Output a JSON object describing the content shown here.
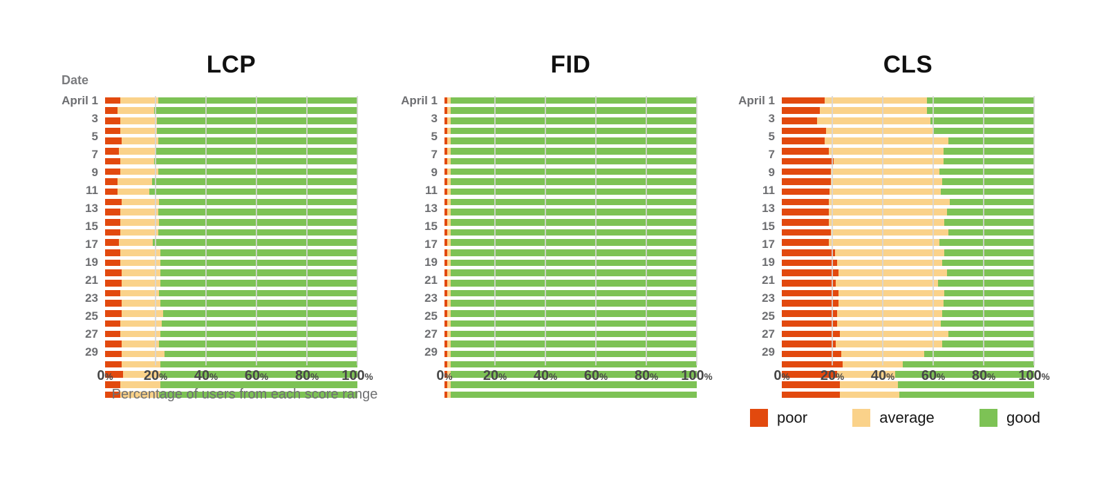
{
  "axis": {
    "y_header": "Date",
    "x_axis_title": "Percentage of users from each score range",
    "pct_suffix": "%"
  },
  "legend": {
    "items": [
      {
        "label": "poor",
        "color": "#e2490e"
      },
      {
        "label": "average",
        "color": "#fad28a"
      },
      {
        "label": "good",
        "color": "#7dc255"
      }
    ]
  },
  "colors": {
    "poor": "#e2490e",
    "average": "#fad28a",
    "good": "#7dc255",
    "gridline": "#d6d6d6",
    "title_text": "#111111",
    "date_label_text": "#6d6e71",
    "tick_text": "#474747",
    "subtitle_text": "#6f7072"
  },
  "chart_data": [
    {
      "type": "bar",
      "orientation": "horizontal",
      "stacked": true,
      "title": "LCP",
      "ylabel": "Date",
      "xlabel": "Percentage of users from each score range",
      "xlim": [
        0,
        100
      ],
      "x_ticks": [
        0,
        20,
        40,
        60,
        80,
        100
      ],
      "categories": [
        1,
        2,
        3,
        4,
        5,
        6,
        7,
        8,
        9,
        10,
        11,
        12,
        13,
        14,
        15,
        16,
        17,
        18,
        19,
        20,
        21,
        22,
        23,
        24,
        25,
        26,
        27,
        28,
        29,
        30
      ],
      "y_tick_positions": [
        1,
        3,
        5,
        7,
        9,
        11,
        13,
        15,
        17,
        19,
        21,
        23,
        25,
        27,
        29
      ],
      "y_tick_labels": [
        "April 1",
        "3",
        "5",
        "7",
        "9",
        "11",
        "13",
        "15",
        "17",
        "19",
        "21",
        "23",
        "25",
        "27",
        "29"
      ],
      "series": [
        {
          "name": "poor",
          "color": "#e2490e",
          "values": [
            6,
            5,
            6,
            6,
            6.5,
            5.5,
            6,
            6,
            5,
            5,
            6.5,
            6,
            6,
            6,
            5.5,
            6,
            6,
            6.5,
            6.5,
            6,
            6.5,
            6.5,
            6,
            6,
            6.5,
            6.5,
            6.5,
            7,
            6,
            6
          ]
        },
        {
          "name": "average",
          "color": "#fad28a",
          "values": [
            15,
            14.5,
            14.5,
            14.5,
            14.5,
            14.5,
            13.5,
            15,
            13.5,
            12.5,
            15,
            15,
            15.5,
            15,
            13.5,
            16,
            16,
            15.5,
            15.5,
            15.5,
            15.5,
            16.5,
            16.5,
            16,
            15,
            17,
            15.5,
            15,
            16,
            15.5
          ]
        },
        {
          "name": "good",
          "color": "#7dc255",
          "values": [
            79,
            80.5,
            79.5,
            79.5,
            79,
            80,
            80.5,
            79,
            81.5,
            82.5,
            78.5,
            79,
            78.5,
            79,
            81,
            78,
            78,
            78,
            78,
            78.5,
            78,
            77,
            77.5,
            78,
            78.5,
            76.5,
            78,
            78,
            78,
            78.5
          ]
        }
      ]
    },
    {
      "type": "bar",
      "orientation": "horizontal",
      "stacked": true,
      "title": "FID",
      "xlim": [
        0,
        100
      ],
      "x_ticks": [
        0,
        20,
        40,
        60,
        80,
        100
      ],
      "categories": [
        1,
        2,
        3,
        4,
        5,
        6,
        7,
        8,
        9,
        10,
        11,
        12,
        13,
        14,
        15,
        16,
        17,
        18,
        19,
        20,
        21,
        22,
        23,
        24,
        25,
        26,
        27,
        28,
        29,
        30
      ],
      "y_tick_positions": [
        1,
        3,
        5,
        7,
        9,
        11,
        13,
        15,
        17,
        19,
        21,
        23,
        25,
        27,
        29
      ],
      "y_tick_labels": [
        "April 1",
        "3",
        "5",
        "7",
        "9",
        "11",
        "13",
        "15",
        "17",
        "19",
        "21",
        "23",
        "25",
        "27",
        "29"
      ],
      "series": [
        {
          "name": "poor",
          "color": "#e2490e",
          "values": [
            1,
            1,
            1,
            1,
            1,
            1,
            1,
            1,
            1,
            1,
            1,
            1,
            1,
            1,
            1,
            1,
            1,
            1,
            1,
            1,
            1,
            1,
            1,
            1,
            1,
            1,
            1,
            1,
            1,
            1
          ]
        },
        {
          "name": "average",
          "color": "#fad28a",
          "values": [
            1.5,
            1.5,
            1.5,
            1.5,
            1.5,
            1.5,
            1.5,
            1.5,
            1.5,
            1.5,
            1.5,
            1.5,
            1.5,
            1.5,
            1.5,
            1.5,
            1.5,
            1.5,
            1.5,
            1.5,
            1.5,
            1.5,
            1.5,
            1.5,
            1.5,
            1.5,
            1.5,
            1.5,
            1.5,
            1.5
          ]
        },
        {
          "name": "good",
          "color": "#7dc255",
          "values": [
            97.5,
            97.5,
            97.5,
            97.5,
            97.5,
            97.5,
            97.5,
            97.5,
            97.5,
            97.5,
            97.5,
            97.5,
            97.5,
            97.5,
            97.5,
            97.5,
            97.5,
            97.5,
            97.5,
            97.5,
            97.5,
            97.5,
            97.5,
            97.5,
            97.5,
            97.5,
            97.5,
            97.5,
            97.5,
            97.5
          ]
        }
      ]
    },
    {
      "type": "bar",
      "orientation": "horizontal",
      "stacked": true,
      "title": "CLS",
      "xlim": [
        0,
        100
      ],
      "x_ticks": [
        0,
        20,
        40,
        60,
        80,
        100
      ],
      "categories": [
        1,
        2,
        3,
        4,
        5,
        6,
        7,
        8,
        9,
        10,
        11,
        12,
        13,
        14,
        15,
        16,
        17,
        18,
        19,
        20,
        21,
        22,
        23,
        24,
        25,
        26,
        27,
        28,
        29,
        30
      ],
      "y_tick_positions": [
        1,
        3,
        5,
        7,
        9,
        11,
        13,
        15,
        17,
        19,
        21,
        23,
        25,
        27,
        29
      ],
      "y_tick_labels": [
        "April 1",
        "3",
        "5",
        "7",
        "9",
        "11",
        "13",
        "15",
        "17",
        "19",
        "21",
        "23",
        "25",
        "27",
        "29"
      ],
      "legend_position": "bottom-right",
      "series": [
        {
          "name": "poor",
          "color": "#e2490e",
          "values": [
            17,
            15,
            14,
            17.5,
            17,
            18.5,
            20.5,
            19.5,
            19.5,
            19,
            18.5,
            18.5,
            18.5,
            19.5,
            18.5,
            21,
            22,
            22.5,
            21.5,
            22.5,
            22.5,
            22,
            22,
            23,
            21.5,
            23.5,
            24,
            22,
            23,
            23
          ]
        },
        {
          "name": "average",
          "color": "#fad28a",
          "values": [
            40.5,
            42.5,
            45,
            42.5,
            49,
            45.5,
            43.5,
            43,
            44,
            44,
            48,
            47,
            46,
            46.5,
            44,
            43.5,
            41.5,
            43,
            40.5,
            42,
            41.5,
            41.5,
            41,
            43,
            42,
            33,
            24,
            23,
            23,
            23.5
          ]
        },
        {
          "name": "good",
          "color": "#7dc255",
          "values": [
            42.5,
            42.5,
            41,
            40,
            34,
            36,
            36,
            37.5,
            36.5,
            37,
            33.5,
            34.5,
            35.5,
            34,
            37.5,
            35.5,
            36.5,
            34.5,
            38,
            35.5,
            36,
            36.5,
            37,
            34,
            36.5,
            43.5,
            52,
            55,
            54,
            53.5
          ]
        }
      ]
    }
  ]
}
